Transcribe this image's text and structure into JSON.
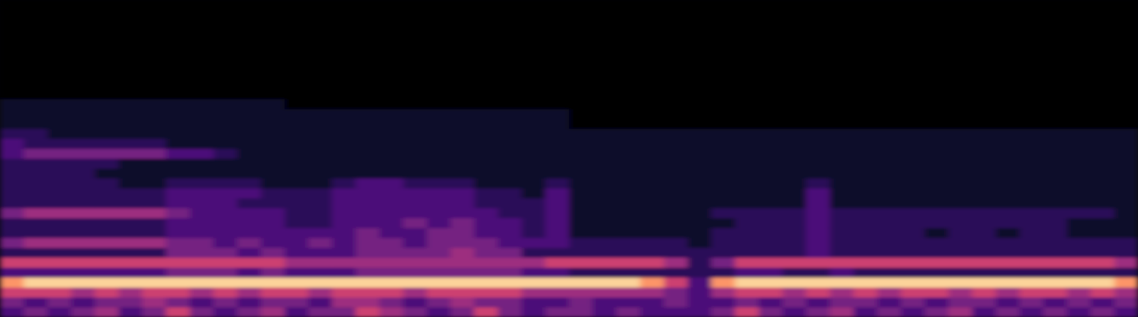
{
  "chart_data": {
    "type": "heatmap",
    "tick_labels": false,
    "xlim": [
      0,
      48
    ],
    "ylim": [
      0,
      32
    ],
    "color_range": [
      0,
      9
    ],
    "cells": [
      [
        3,
        4,
        3,
        4,
        5,
        3,
        4,
        6,
        4,
        3,
        4,
        5,
        3,
        4,
        4,
        6,
        5,
        4,
        3,
        4,
        6,
        4,
        3,
        4,
        4,
        3,
        4,
        3,
        3,
        3,
        4,
        6,
        4,
        3,
        4,
        5,
        3,
        4,
        3,
        4,
        5,
        3,
        4,
        3,
        4,
        3,
        4,
        3
      ],
      [
        4,
        3,
        4,
        3,
        4,
        4,
        5,
        4,
        3,
        4,
        3,
        4,
        4,
        3,
        5,
        5,
        4,
        3,
        4,
        5,
        4,
        4,
        3,
        3,
        4,
        3,
        3,
        3,
        4,
        3,
        3,
        4,
        3,
        4,
        3,
        4,
        4,
        3,
        4,
        3,
        4,
        4,
        3,
        4,
        3,
        4,
        3,
        4
      ],
      [
        6,
        6,
        6,
        5,
        6,
        5,
        6,
        6,
        5,
        6,
        5,
        6,
        6,
        5,
        6,
        6,
        6,
        5,
        6,
        6,
        6,
        6,
        5,
        5,
        5,
        5,
        5,
        5,
        4,
        3,
        5,
        6,
        6,
        5,
        6,
        5,
        6,
        5,
        6,
        6,
        5,
        6,
        5,
        6,
        6,
        5,
        6,
        5
      ],
      [
        8,
        9,
        9,
        9,
        9,
        9,
        9,
        9,
        9,
        9,
        9,
        9,
        9,
        9,
        9,
        9,
        9,
        9,
        9,
        9,
        9,
        9,
        9,
        9,
        9,
        9,
        9,
        8,
        6,
        3,
        8,
        9,
        9,
        9,
        9,
        9,
        9,
        9,
        9,
        9,
        9,
        9,
        9,
        9,
        9,
        9,
        9,
        8
      ],
      [
        3,
        3,
        3,
        3,
        3,
        3,
        3,
        4,
        4,
        4,
        3,
        4,
        3,
        3,
        3,
        4,
        4,
        4,
        4,
        4,
        4,
        4,
        3,
        3,
        2,
        2,
        2,
        2,
        2,
        2,
        2,
        3,
        3,
        2,
        2,
        3,
        2,
        2,
        2,
        2,
        2,
        2,
        2,
        2,
        2,
        2,
        2,
        2
      ],
      [
        6,
        6,
        6,
        6,
        6,
        6,
        6,
        6,
        6,
        6,
        6,
        6,
        5,
        5,
        5,
        5,
        5,
        5,
        5,
        5,
        5,
        5,
        5,
        6,
        6,
        6,
        6,
        6,
        5,
        2,
        4,
        6,
        6,
        6,
        6,
        6,
        6,
        6,
        6,
        6,
        6,
        6,
        6,
        6,
        6,
        6,
        6,
        5
      ],
      [
        2,
        2,
        2,
        2,
        2,
        2,
        2,
        4,
        4,
        4,
        3,
        4,
        3,
        3,
        3,
        4,
        4,
        4,
        4,
        5,
        4,
        4,
        2,
        2,
        2,
        2,
        2,
        2,
        2,
        2,
        2,
        2,
        2,
        2,
        3,
        2,
        2,
        2,
        2,
        2,
        2,
        2,
        2,
        2,
        2,
        2,
        2,
        2
      ],
      [
        4,
        5,
        5,
        5,
        5,
        5,
        5,
        4,
        4,
        3,
        4,
        3,
        3,
        4,
        3,
        4,
        4,
        3,
        4,
        4,
        4,
        3,
        3,
        3,
        2,
        2,
        2,
        2,
        2,
        1,
        2,
        2,
        2,
        2,
        3,
        2,
        2,
        2,
        2,
        2,
        2,
        2,
        2,
        2,
        2,
        2,
        2,
        2
      ],
      [
        2,
        2,
        2,
        2,
        2,
        2,
        2,
        3,
        3,
        3,
        3,
        3,
        3,
        3,
        3,
        4,
        3,
        3,
        4,
        4,
        3,
        3,
        2,
        3,
        1,
        1,
        1,
        1,
        1,
        1,
        2,
        2,
        2,
        2,
        3,
        2,
        2,
        2,
        2,
        1,
        2,
        2,
        1,
        2,
        2,
        1,
        1,
        1
      ],
      [
        2,
        2,
        2,
        2,
        2,
        2,
        2,
        3,
        3,
        3,
        3,
        3,
        2,
        2,
        3,
        3,
        3,
        4,
        3,
        4,
        3,
        3,
        2,
        3,
        1,
        1,
        1,
        1,
        1,
        1,
        1,
        2,
        2,
        2,
        3,
        2,
        2,
        2,
        2,
        2,
        2,
        2,
        2,
        2,
        2,
        1,
        1,
        1
      ],
      [
        4,
        5,
        5,
        5,
        5,
        5,
        5,
        4,
        3,
        3,
        3,
        3,
        2,
        2,
        3,
        3,
        3,
        3,
        3,
        3,
        3,
        2,
        2,
        3,
        1,
        1,
        1,
        1,
        1,
        1,
        2,
        2,
        2,
        2,
        3,
        2,
        2,
        2,
        2,
        2,
        2,
        2,
        2,
        2,
        2,
        2,
        2,
        1
      ],
      [
        2,
        2,
        2,
        2,
        2,
        2,
        2,
        3,
        3,
        3,
        2,
        2,
        2,
        2,
        3,
        3,
        3,
        3,
        3,
        3,
        2,
        2,
        2,
        3,
        1,
        1,
        1,
        1,
        1,
        1,
        1,
        1,
        1,
        1,
        3,
        1,
        1,
        1,
        1,
        1,
        1,
        1,
        1,
        1,
        1,
        1,
        1,
        1
      ],
      [
        2,
        2,
        2,
        2,
        2,
        2,
        2,
        3,
        3,
        3,
        3,
        2,
        2,
        2,
        3,
        3,
        3,
        3,
        3,
        3,
        2,
        2,
        1,
        3,
        1,
        1,
        1,
        1,
        1,
        1,
        1,
        1,
        1,
        1,
        3,
        1,
        1,
        1,
        1,
        1,
        1,
        1,
        1,
        1,
        1,
        1,
        1,
        1
      ],
      [
        2,
        2,
        2,
        2,
        2,
        1,
        1,
        2,
        2,
        2,
        2,
        1,
        1,
        1,
        2,
        3,
        3,
        2,
        2,
        2,
        1,
        1,
        1,
        2,
        1,
        1,
        1,
        1,
        1,
        1,
        1,
        1,
        1,
        1,
        2,
        1,
        1,
        1,
        1,
        1,
        1,
        1,
        1,
        1,
        1,
        1,
        1,
        1
      ],
      [
        2,
        2,
        2,
        2,
        1,
        1,
        1,
        1,
        1,
        1,
        1,
        1,
        1,
        1,
        1,
        1,
        1,
        1,
        1,
        1,
        1,
        1,
        1,
        1,
        1,
        1,
        1,
        1,
        1,
        1,
        1,
        1,
        1,
        1,
        1,
        1,
        1,
        1,
        1,
        1,
        1,
        1,
        1,
        1,
        1,
        1,
        1,
        1
      ],
      [
        2,
        2,
        2,
        2,
        2,
        1,
        1,
        1,
        1,
        1,
        1,
        1,
        1,
        1,
        1,
        1,
        1,
        1,
        1,
        1,
        1,
        1,
        1,
        1,
        1,
        1,
        1,
        1,
        1,
        1,
        1,
        1,
        1,
        1,
        1,
        1,
        1,
        1,
        1,
        1,
        1,
        1,
        1,
        1,
        1,
        1,
        1,
        1
      ],
      [
        3,
        4,
        4,
        4,
        4,
        4,
        4,
        3,
        3,
        2,
        1,
        1,
        1,
        1,
        1,
        1,
        1,
        1,
        1,
        1,
        1,
        1,
        1,
        1,
        1,
        1,
        1,
        1,
        1,
        1,
        1,
        1,
        1,
        1,
        1,
        1,
        1,
        1,
        1,
        1,
        1,
        1,
        1,
        1,
        1,
        1,
        1,
        1
      ],
      [
        3,
        2,
        2,
        2,
        2,
        2,
        2,
        1,
        1,
        1,
        1,
        1,
        1,
        1,
        1,
        1,
        1,
        1,
        1,
        1,
        1,
        1,
        1,
        1,
        1,
        1,
        1,
        1,
        1,
        1,
        1,
        1,
        1,
        1,
        1,
        1,
        1,
        1,
        1,
        1,
        1,
        1,
        1,
        1,
        1,
        1,
        1,
        1
      ],
      [
        2,
        2,
        1,
        1,
        1,
        1,
        1,
        1,
        1,
        1,
        1,
        1,
        1,
        1,
        1,
        1,
        1,
        1,
        1,
        1,
        1,
        1,
        1,
        1,
        1,
        1,
        1,
        1,
        1,
        1,
        1,
        1,
        1,
        1,
        1,
        1,
        1,
        1,
        1,
        1,
        1,
        1,
        1,
        1,
        1,
        1,
        1,
        1
      ],
      [
        1,
        1,
        1,
        1,
        1,
        1,
        1,
        1,
        1,
        1,
        1,
        1,
        1,
        1,
        1,
        1,
        1,
        1,
        1,
        1,
        1,
        1,
        1,
        1,
        0,
        0,
        0,
        0,
        0,
        0,
        0,
        0,
        0,
        0,
        0,
        0,
        0,
        0,
        0,
        0,
        0,
        0,
        0,
        0,
        0,
        0,
        0,
        0
      ],
      [
        1,
        1,
        1,
        1,
        1,
        1,
        1,
        1,
        1,
        1,
        1,
        1,
        1,
        1,
        1,
        1,
        1,
        1,
        1,
        1,
        1,
        1,
        1,
        1,
        0,
        0,
        0,
        0,
        0,
        0,
        0,
        0,
        0,
        0,
        0,
        0,
        0,
        0,
        0,
        0,
        0,
        0,
        0,
        0,
        0,
        0,
        0,
        0
      ],
      [
        1,
        1,
        1,
        1,
        1,
        1,
        1,
        1,
        1,
        1,
        1,
        1,
        0,
        0,
        0,
        0,
        0,
        0,
        0,
        0,
        0,
        0,
        0,
        0,
        0,
        0,
        0,
        0,
        0,
        0,
        0,
        0,
        0,
        0,
        0,
        0,
        0,
        0,
        0,
        0,
        0,
        0,
        0,
        0,
        0,
        0,
        0,
        0
      ],
      [
        0,
        0,
        0,
        0,
        0,
        0,
        0,
        0,
        0,
        0,
        0,
        0,
        0,
        0,
        0,
        0,
        0,
        0,
        0,
        0,
        0,
        0,
        0,
        0,
        0,
        0,
        0,
        0,
        0,
        0,
        0,
        0,
        0,
        0,
        0,
        0,
        0,
        0,
        0,
        0,
        0,
        0,
        0,
        0,
        0,
        0,
        0,
        0
      ],
      [
        0,
        0,
        0,
        0,
        0,
        0,
        0,
        0,
        0,
        0,
        0,
        0,
        0,
        0,
        0,
        0,
        0,
        0,
        0,
        0,
        0,
        0,
        0,
        0,
        0,
        0,
        0,
        0,
        0,
        0,
        0,
        0,
        0,
        0,
        0,
        0,
        0,
        0,
        0,
        0,
        0,
        0,
        0,
        0,
        0,
        0,
        0,
        0
      ],
      [
        0,
        0,
        0,
        0,
        0,
        0,
        0,
        0,
        0,
        0,
        0,
        0,
        0,
        0,
        0,
        0,
        0,
        0,
        0,
        0,
        0,
        0,
        0,
        0,
        0,
        0,
        0,
        0,
        0,
        0,
        0,
        0,
        0,
        0,
        0,
        0,
        0,
        0,
        0,
        0,
        0,
        0,
        0,
        0,
        0,
        0,
        0,
        0
      ],
      [
        0,
        0,
        0,
        0,
        0,
        0,
        0,
        0,
        0,
        0,
        0,
        0,
        0,
        0,
        0,
        0,
        0,
        0,
        0,
        0,
        0,
        0,
        0,
        0,
        0,
        0,
        0,
        0,
        0,
        0,
        0,
        0,
        0,
        0,
        0,
        0,
        0,
        0,
        0,
        0,
        0,
        0,
        0,
        0,
        0,
        0,
        0,
        0
      ],
      [
        0,
        0,
        0,
        0,
        0,
        0,
        0,
        0,
        0,
        0,
        0,
        0,
        0,
        0,
        0,
        0,
        0,
        0,
        0,
        0,
        0,
        0,
        0,
        0,
        0,
        0,
        0,
        0,
        0,
        0,
        0,
        0,
        0,
        0,
        0,
        0,
        0,
        0,
        0,
        0,
        0,
        0,
        0,
        0,
        0,
        0,
        0,
        0
      ],
      [
        0,
        0,
        0,
        0,
        0,
        0,
        0,
        0,
        0,
        0,
        0,
        0,
        0,
        0,
        0,
        0,
        0,
        0,
        0,
        0,
        0,
        0,
        0,
        0,
        0,
        0,
        0,
        0,
        0,
        0,
        0,
        0,
        0,
        0,
        0,
        0,
        0,
        0,
        0,
        0,
        0,
        0,
        0,
        0,
        0,
        0,
        0,
        0
      ],
      [
        0,
        0,
        0,
        0,
        0,
        0,
        0,
        0,
        0,
        0,
        0,
        0,
        0,
        0,
        0,
        0,
        0,
        0,
        0,
        0,
        0,
        0,
        0,
        0,
        0,
        0,
        0,
        0,
        0,
        0,
        0,
        0,
        0,
        0,
        0,
        0,
        0,
        0,
        0,
        0,
        0,
        0,
        0,
        0,
        0,
        0,
        0,
        0
      ],
      [
        0,
        0,
        0,
        0,
        0,
        0,
        0,
        0,
        0,
        0,
        0,
        0,
        0,
        0,
        0,
        0,
        0,
        0,
        0,
        0,
        0,
        0,
        0,
        0,
        0,
        0,
        0,
        0,
        0,
        0,
        0,
        0,
        0,
        0,
        0,
        0,
        0,
        0,
        0,
        0,
        0,
        0,
        0,
        0,
        0,
        0,
        0,
        0
      ],
      [
        0,
        0,
        0,
        0,
        0,
        0,
        0,
        0,
        0,
        0,
        0,
        0,
        0,
        0,
        0,
        0,
        0,
        0,
        0,
        0,
        0,
        0,
        0,
        0,
        0,
        0,
        0,
        0,
        0,
        0,
        0,
        0,
        0,
        0,
        0,
        0,
        0,
        0,
        0,
        0,
        0,
        0,
        0,
        0,
        0,
        0,
        0,
        0
      ],
      [
        0,
        0,
        0,
        0,
        0,
        0,
        0,
        0,
        0,
        0,
        0,
        0,
        0,
        0,
        0,
        0,
        0,
        0,
        0,
        0,
        0,
        0,
        0,
        0,
        0,
        0,
        0,
        0,
        0,
        0,
        0,
        0,
        0,
        0,
        0,
        0,
        0,
        0,
        0,
        0,
        0,
        0,
        0,
        0,
        0,
        0,
        0,
        0
      ]
    ]
  }
}
